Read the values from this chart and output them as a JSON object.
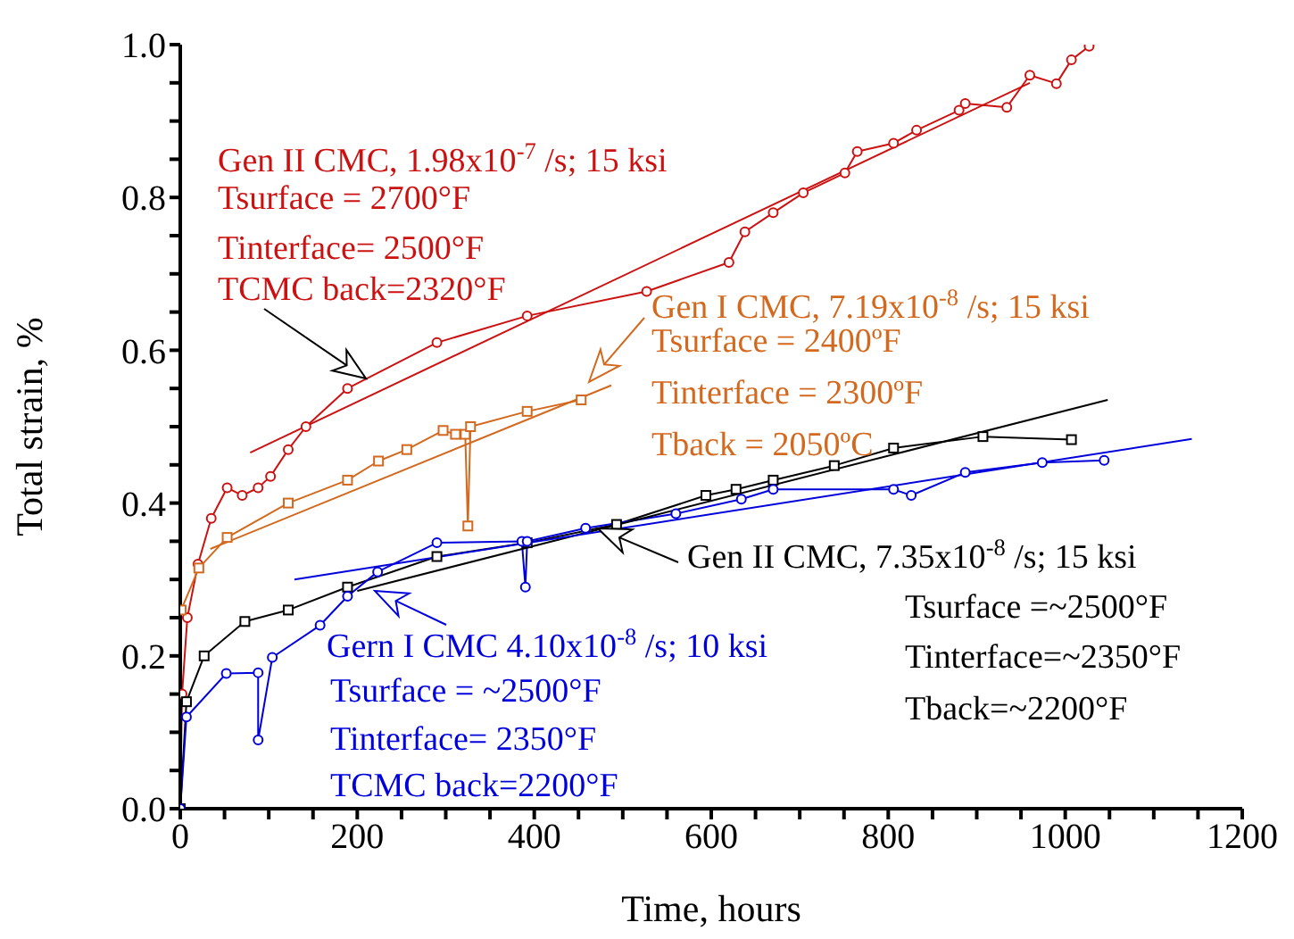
{
  "chart_data": {
    "type": "line",
    "xlabel": "Time, hours",
    "ylabel": "Total strain, %",
    "xlim": [
      0,
      1200
    ],
    "ylim": [
      0,
      1.0
    ],
    "xticks": [
      0,
      {
        "value": 50,
        "label": null
      },
      {
        "value": 100,
        "label": null
      },
      {
        "value": 150,
        "label": null
      },
      200,
      {
        "value": 250,
        "label": null
      },
      {
        "value": 300,
        "label": null
      },
      {
        "value": 350,
        "label": null
      },
      400,
      {
        "value": 450,
        "label": null
      },
      {
        "value": 500,
        "label": null
      },
      {
        "value": 550,
        "label": null
      },
      600,
      {
        "value": 650,
        "label": null
      },
      {
        "value": 700,
        "label": null
      },
      {
        "value": 750,
        "label": null
      },
      800,
      {
        "value": 850,
        "label": null
      },
      {
        "value": 900,
        "label": null
      },
      {
        "value": 950,
        "label": null
      },
      1000,
      {
        "value": 1050,
        "label": null
      },
      {
        "value": 1100,
        "label": null
      },
      {
        "value": 1150,
        "label": null
      },
      1200
    ],
    "yticks": [
      {
        "value": 0,
        "label": "0.0"
      },
      {
        "value": 0.05,
        "label": null
      },
      {
        "value": 0.1,
        "label": null
      },
      {
        "value": 0.15,
        "label": null
      },
      0.2,
      {
        "value": 0.25,
        "label": null
      },
      {
        "value": 0.3,
        "label": null
      },
      {
        "value": 0.35,
        "label": null
      },
      0.4,
      {
        "value": 0.45,
        "label": null
      },
      {
        "value": 0.5,
        "label": null
      },
      {
        "value": 0.55,
        "label": null
      },
      0.6,
      {
        "value": 0.65,
        "label": null
      },
      {
        "value": 0.7,
        "label": null
      },
      {
        "value": 0.75,
        "label": null
      },
      0.8,
      {
        "value": 0.85,
        "label": null
      },
      {
        "value": 0.9,
        "label": null
      },
      {
        "value": 0.95,
        "label": null
      },
      {
        "value": 1.0,
        "label": "1.0"
      }
    ],
    "series": [
      {
        "color": "#cc1111",
        "marker": "circle",
        "x": [
          0,
          2,
          8,
          20,
          35,
          53,
          70,
          88,
          102,
          122,
          142,
          189,
          290,
          392,
          527,
          620,
          638,
          670,
          704,
          751,
          765,
          806,
          832,
          880,
          887,
          934,
          960,
          990,
          1007,
          1027
        ],
        "values": [
          0,
          0.15,
          0.25,
          0.32,
          0.38,
          0.42,
          0.41,
          0.42,
          0.435,
          0.47,
          0.5,
          0.55,
          0.61,
          0.645,
          0.677,
          0.715,
          0.755,
          0.78,
          0.806,
          0.832,
          0.86,
          0.871,
          0.888,
          0.914,
          0.923,
          0.918,
          0.96,
          0.949,
          0.98,
          0.998
        ]
      },
      {
        "color": "#d2691e",
        "marker": "square",
        "x": [
          0,
          1,
          21,
          53,
          122,
          189,
          224,
          256,
          297,
          311,
          322,
          325,
          328,
          392,
          453
        ],
        "values": [
          0,
          0.26,
          0.315,
          0.355,
          0.4,
          0.43,
          0.455,
          0.47,
          0.495,
          0.49,
          0.49,
          0.37,
          0.5,
          0.52,
          0.535
        ]
      },
      {
        "color": "#000000",
        "marker": "square",
        "x": [
          0,
          7,
          27,
          73,
          122,
          189,
          290,
          392,
          493,
          594,
          628,
          670,
          739,
          806,
          907,
          1007
        ],
        "values": [
          0,
          0.14,
          0.2,
          0.245,
          0.26,
          0.29,
          0.33,
          0.348,
          0.372,
          0.41,
          0.418,
          0.43,
          0.449,
          0.472,
          0.487,
          0.483
        ]
      },
      {
        "color": "#0000dd",
        "marker": "circle",
        "x": [
          0,
          7,
          52,
          88,
          88,
          104,
          158,
          189,
          223,
          290,
          386,
          390,
          392,
          458,
          560,
          634,
          670,
          806,
          826,
          887,
          974,
          1044
        ],
        "values": [
          0,
          0.12,
          0.177,
          0.178,
          0.09,
          0.198,
          0.24,
          0.278,
          0.31,
          0.348,
          0.35,
          0.29,
          0.35,
          0.367,
          0.386,
          0.405,
          0.418,
          0.418,
          0.41,
          0.44,
          0.453,
          0.456
        ]
      },
      {
        "color": "#cc1111",
        "marker": "none",
        "x": [
          79,
          960
        ],
        "values": [
          0.466,
          0.95
        ]
      },
      {
        "color": "#d2691e",
        "marker": "none",
        "x": [
          34,
          487
        ],
        "values": [
          0.34,
          0.554
        ]
      },
      {
        "color": "#000000",
        "marker": "none",
        "x": [
          200,
          1048
        ],
        "values": [
          0.285,
          0.535
        ]
      },
      {
        "color": "#0000dd",
        "marker": "none",
        "x": [
          129,
          1143
        ],
        "values": [
          0.3,
          0.484
        ]
      }
    ],
    "annotations": [
      "Gen II CMC, 1.98x10$^{-7}$ /s; 15 ksi",
      "Tsurface = 2700°F",
      "Tinterface= 2500°F",
      "TCMC back=2320°F",
      "Gen I CMC, 7.19x10$^{-8}$ /s; 15 ksi",
      "Tsurface = 2400ºF",
      "Tinterface = 2300ºF",
      "Tback = 2050ºC",
      "Gen II CMC, 7.35x10$^{-8}$ /s; 15 ksi",
      "Tsurface =~2500°F",
      "Tinterface=~2350°F",
      "Tback=~2200°F",
      "Gern I CMC 4.10x10$^{-8}$ /s; 10 ksi",
      "Tsurface = ~2500°F",
      "Tinterface= 2350°F",
      "TCMC back=2200°F"
    ]
  }
}
